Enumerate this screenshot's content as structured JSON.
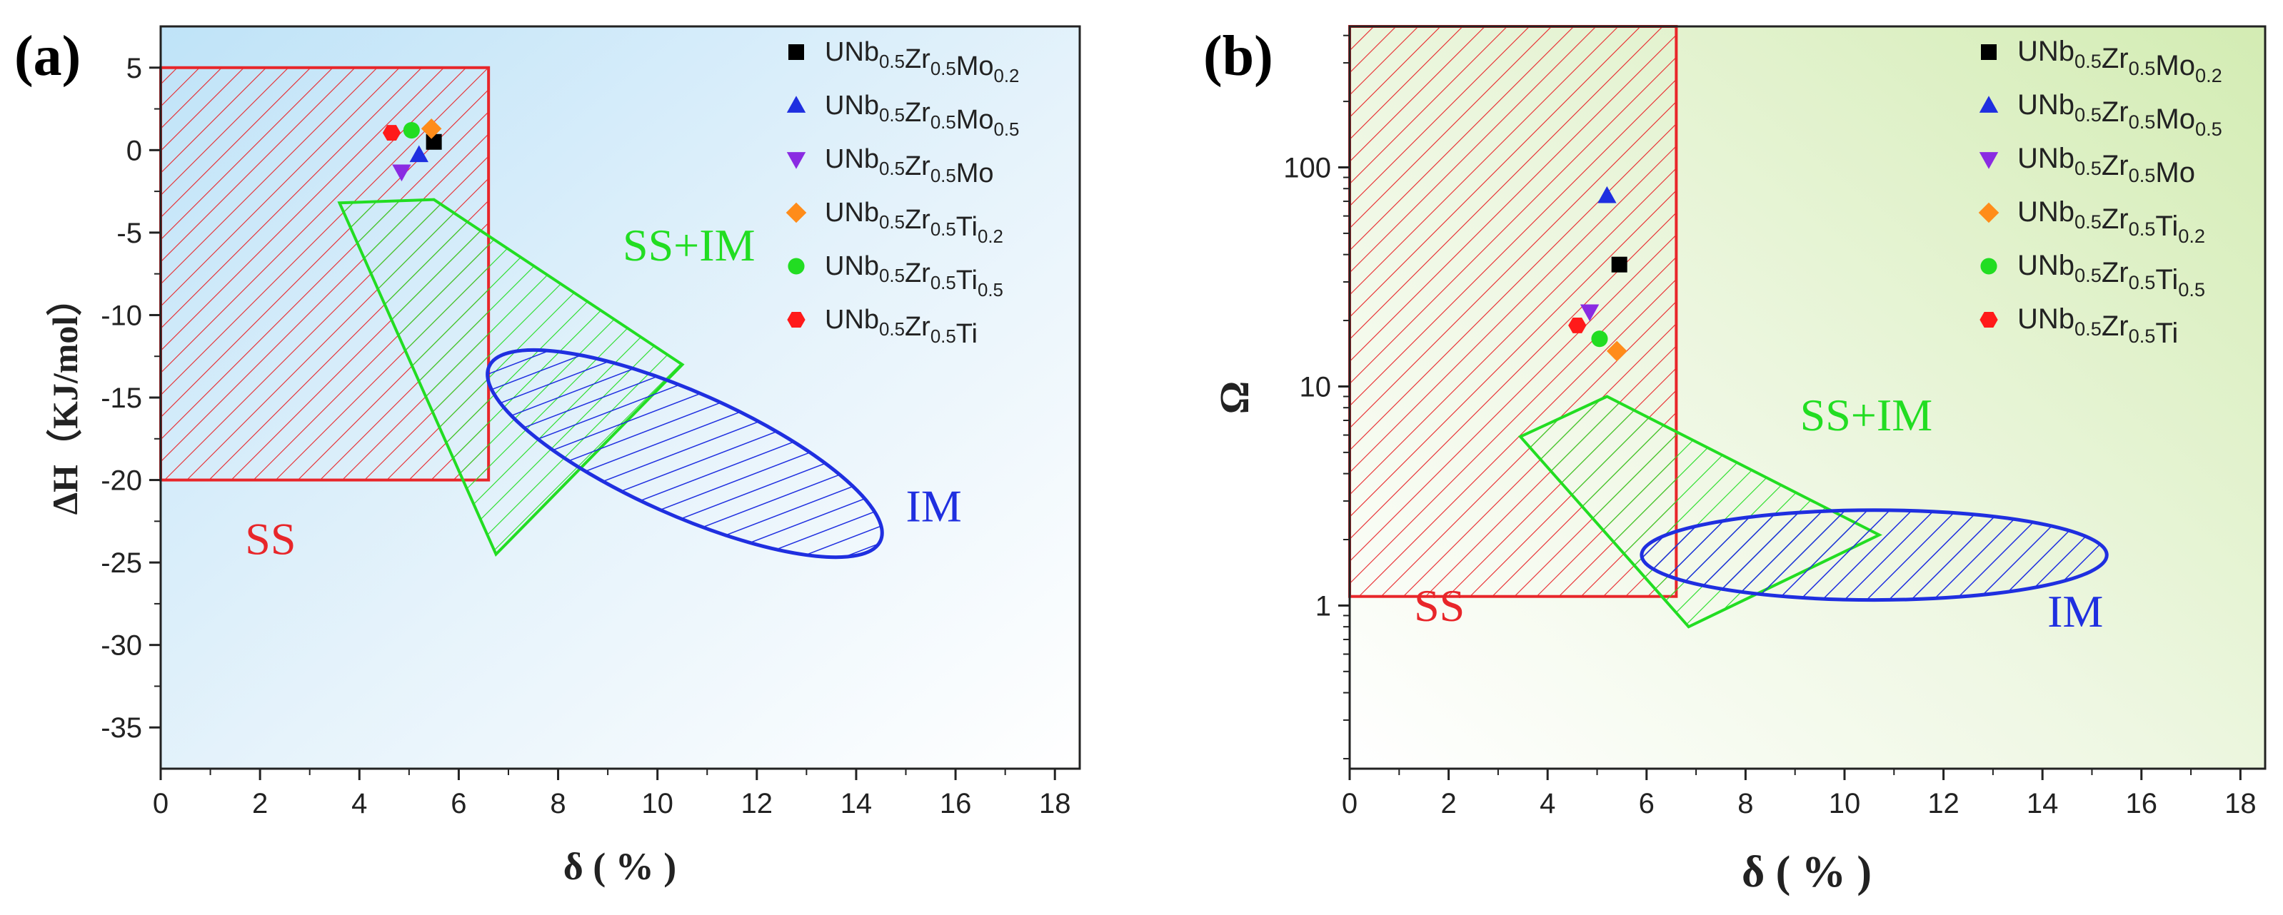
{
  "panels": [
    {
      "panel_label": "(a)",
      "chart_data": {
        "type": "scatter",
        "xlabel": "δ ( % )",
        "ylabel": "ΔH（KJ/mol）",
        "xlim": [
          0,
          18.5
        ],
        "ylim": [
          -37.5,
          7.5
        ],
        "yscale": "linear",
        "xticks": [
          0,
          2,
          4,
          6,
          8,
          10,
          12,
          14,
          16,
          18
        ],
        "yticks": [
          5,
          0,
          -5,
          -10,
          -15,
          -20,
          -25,
          -30,
          -35
        ],
        "background": "gradient-blue",
        "legend_position": "top-right",
        "series": [
          {
            "name": "UNb0.5Zr0.5Mo0.2",
            "name_parts": {
              "base": "UNb",
              "s1": "0.5",
              "m": "Zr",
              "s2": "0.5",
              "el": "Mo",
              "s3": "0.2"
            },
            "marker": "square",
            "color": "#000000",
            "x": [
              5.5
            ],
            "y": [
              0.5
            ]
          },
          {
            "name": "UNb0.5Zr0.5Mo0.5",
            "name_parts": {
              "base": "UNb",
              "s1": "0.5",
              "m": "Zr",
              "s2": "0.5",
              "el": "Mo",
              "s3": "0.5"
            },
            "marker": "triangle-up",
            "color": "#1f2fe0",
            "x": [
              5.2
            ],
            "y": [
              -0.3
            ]
          },
          {
            "name": "UNb0.5Zr0.5Mo",
            "name_parts": {
              "base": "UNb",
              "s1": "0.5",
              "m": "Zr",
              "s2": "0.5",
              "el": "Mo",
              "s3": ""
            },
            "marker": "triangle-down",
            "color": "#8a2be2",
            "x": [
              4.85
            ],
            "y": [
              -1.3
            ]
          },
          {
            "name": "UNb0.5Zr0.5Ti0.2",
            "name_parts": {
              "base": "UNb",
              "s1": "0.5",
              "m": "Zr",
              "s2": "0.5",
              "el": "Ti",
              "s3": "0.2"
            },
            "marker": "diamond",
            "color": "#ff8c1a",
            "x": [
              5.45
            ],
            "y": [
              1.3
            ]
          },
          {
            "name": "UNb0.5Zr0.5Ti0.5",
            "name_parts": {
              "base": "UNb",
              "s1": "0.5",
              "m": "Zr",
              "s2": "0.5",
              "el": "Ti",
              "s3": "0.5"
            },
            "marker": "circle",
            "color": "#22dd22",
            "x": [
              5.05
            ],
            "y": [
              1.2
            ]
          },
          {
            "name": "UNb0.5Zr0.5Ti",
            "name_parts": {
              "base": "UNb",
              "s1": "0.5",
              "m": "Zr",
              "s2": "0.5",
              "el": "Ti",
              "s3": ""
            },
            "marker": "hexagon",
            "color": "#ff1a1a",
            "x": [
              4.65
            ],
            "y": [
              1.05
            ]
          }
        ],
        "regions": [
          {
            "label": "SS",
            "shape": "rect",
            "color": "#e8262a",
            "x0": 0,
            "x1": 6.6,
            "y0": -20,
            "y1": 5,
            "label_at": [
              1.7,
              -24.5
            ]
          },
          {
            "label": "SS+IM",
            "shape": "polygon",
            "color": "#22dd22",
            "points": [
              [
                3.6,
                -3.2
              ],
              [
                5.5,
                -3.0
              ],
              [
                10.5,
                -13.0
              ],
              [
                6.75,
                -24.5
              ]
            ],
            "label_at": [
              9.3,
              -6.7
            ]
          },
          {
            "label": "IM",
            "shape": "ellipse",
            "color": "#1f2fe0",
            "cx": 10.55,
            "cy": -18.4,
            "rx": 4.45,
            "ry": 4.3,
            "angle": 0,
            "label_at": [
              15.0,
              -22.5
            ]
          }
        ]
      }
    },
    {
      "panel_label": "(b)",
      "chart_data": {
        "type": "scatter",
        "xlabel": "δ ( % )",
        "ylabel": "Ω",
        "xlim": [
          0,
          18.5
        ],
        "ylim": [
          0.18,
          440
        ],
        "yscale": "log",
        "xticks": [
          0,
          2,
          4,
          6,
          8,
          10,
          12,
          14,
          16,
          18
        ],
        "yticks": [
          1,
          10,
          100
        ],
        "background": "gradient-green",
        "legend_position": "top-right",
        "series": [
          {
            "name": "UNb0.5Zr0.5Mo0.2",
            "name_parts": {
              "base": "UNb",
              "s1": "0.5",
              "m": "Zr",
              "s2": "0.5",
              "el": "Mo",
              "s3": "0.2"
            },
            "marker": "square",
            "color": "#000000",
            "x": [
              5.45
            ],
            "y": [
              36
            ]
          },
          {
            "name": "UNb0.5Zr0.5Mo0.5",
            "name_parts": {
              "base": "UNb",
              "s1": "0.5",
              "m": "Zr",
              "s2": "0.5",
              "el": "Mo",
              "s3": "0.5"
            },
            "marker": "triangle-up",
            "color": "#1f2fe0",
            "x": [
              5.2
            ],
            "y": [
              74
            ]
          },
          {
            "name": "UNb0.5Zr0.5Mo",
            "name_parts": {
              "base": "UNb",
              "s1": "0.5",
              "m": "Zr",
              "s2": "0.5",
              "el": "Mo",
              "s3": ""
            },
            "marker": "triangle-down",
            "color": "#8a2be2",
            "x": [
              4.85
            ],
            "y": [
              22
            ]
          },
          {
            "name": "UNb0.5Zr0.5Ti0.2",
            "name_parts": {
              "base": "UNb",
              "s1": "0.5",
              "m": "Zr",
              "s2": "0.5",
              "el": "Ti",
              "s3": "0.2"
            },
            "marker": "diamond",
            "color": "#ff8c1a",
            "x": [
              5.4
            ],
            "y": [
              14.5
            ]
          },
          {
            "name": "UNb0.5Zr0.5Ti0.5",
            "name_parts": {
              "base": "UNb",
              "s1": "0.5",
              "m": "Zr",
              "s2": "0.5",
              "el": "Ti",
              "s3": "0.5"
            },
            "marker": "circle",
            "color": "#22dd22",
            "x": [
              5.05
            ],
            "y": [
              16.5
            ]
          },
          {
            "name": "UNb0.5Zr0.5Ti",
            "name_parts": {
              "base": "UNb",
              "s1": "0.5",
              "m": "Zr",
              "s2": "0.5",
              "el": "Ti",
              "s3": ""
            },
            "marker": "hexagon",
            "color": "#ff1a1a",
            "x": [
              4.6
            ],
            "y": [
              19
            ]
          }
        ],
        "regions": [
          {
            "label": "SS",
            "shape": "rect",
            "color": "#e8262a",
            "x0": 0,
            "x1": 6.6,
            "y0": 1.1,
            "y1": 440,
            "label_at": [
              1.3,
              0.85
            ]
          },
          {
            "label": "SS+IM",
            "shape": "polygon",
            "color": "#22dd22",
            "points": [
              [
                3.45,
                5.9
              ],
              [
                5.2,
                9.0
              ],
              [
                10.7,
                2.1
              ],
              [
                6.85,
                0.8
              ]
            ],
            "label_at": [
              9.1,
              6.3
            ]
          },
          {
            "label": "IM",
            "shape": "ellipse",
            "color": "#1f2fe0",
            "cx": 10.6,
            "cy": 1.7,
            "rx": 4.7,
            "ry_log": 0.205,
            "angle": 0,
            "label_at": [
              14.1,
              0.8
            ]
          }
        ]
      }
    }
  ]
}
